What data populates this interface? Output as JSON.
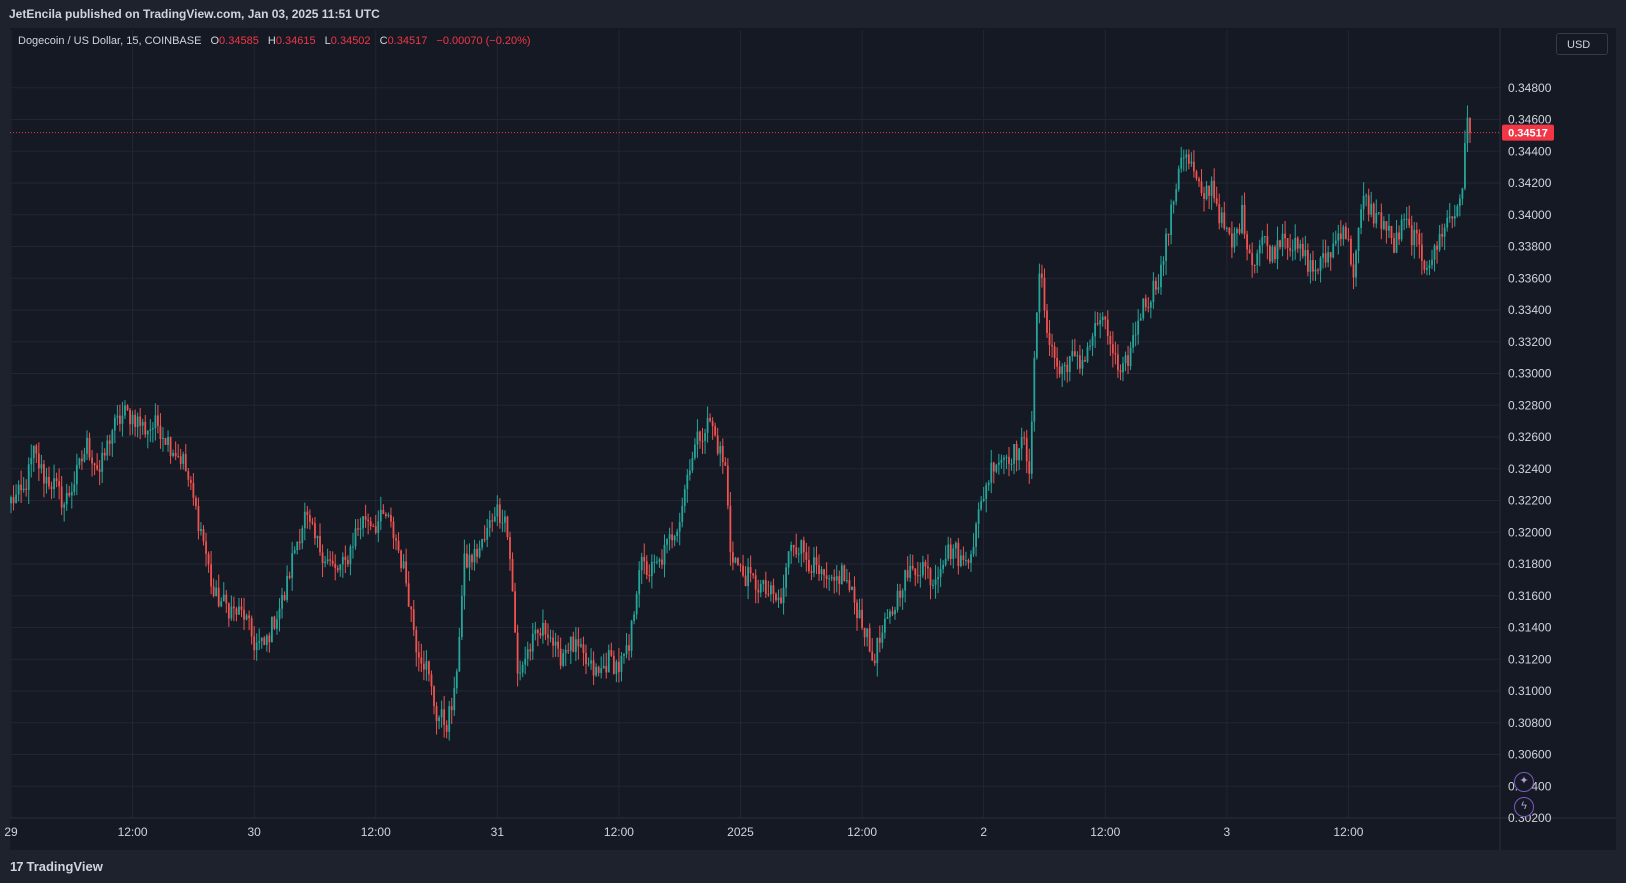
{
  "header": {
    "publisher_text": "JetEncila published on TradingView.com, Jan 03, 2025 11:51 UTC"
  },
  "legend": {
    "symbol": "Dogecoin / US Dollar, 15, COINBASE",
    "open_label": "O",
    "open_value": "0.34585",
    "high_label": "H",
    "high_value": "0.34615",
    "low_label": "L",
    "low_value": "0.34502",
    "close_label": "C",
    "close_value": "0.34517",
    "change": "−0.00070 (−0.20%)"
  },
  "currency": "USD",
  "price_label": "0.34517",
  "footer": {
    "brand": "TradingView",
    "brand_icon": "tv-logo-icon"
  },
  "icons": {
    "ai": "sparkle-icon",
    "alert": "lightning-icon"
  },
  "colors": {
    "up": "#26a69a",
    "down": "#ef5350",
    "background": "#151924",
    "grid": "#232632",
    "price_line": "#f23645"
  },
  "chart_data": {
    "type": "candlestick",
    "title": "Dogecoin / US Dollar, 15, COINBASE",
    "interval": "15",
    "exchange": "COINBASE",
    "y_ticks": [
      "0.34800",
      "0.34600",
      "0.34400",
      "0.34200",
      "0.34000",
      "0.33800",
      "0.33600",
      "0.33400",
      "0.33200",
      "0.33000",
      "0.32800",
      "0.32600",
      "0.32400",
      "0.32200",
      "0.32000",
      "0.31800",
      "0.31600",
      "0.31400",
      "0.31200",
      "0.31000",
      "0.30800",
      "0.30600",
      "0.30400",
      "0.30200"
    ],
    "ylim": [
      0.302,
      0.35
    ],
    "x_ticks": [
      "29",
      "12:00",
      "30",
      "12:00",
      "31",
      "12:00",
      "2025",
      "12:00",
      "2",
      "12:00",
      "3",
      "12:00"
    ],
    "x_tick_bars": [
      0,
      48,
      96,
      144,
      192,
      240,
      288,
      336,
      384,
      432,
      480,
      528
    ],
    "last_price": 0.34517,
    "grid": true,
    "close_path": [
      [
        0,
        0.322
      ],
      [
        5,
        0.3225
      ],
      [
        9,
        0.325
      ],
      [
        13,
        0.3235
      ],
      [
        17,
        0.323
      ],
      [
        21,
        0.3218
      ],
      [
        25,
        0.3232
      ],
      [
        30,
        0.3255
      ],
      [
        35,
        0.3238
      ],
      [
        40,
        0.3265
      ],
      [
        45,
        0.3275
      ],
      [
        49,
        0.3272
      ],
      [
        53,
        0.3265
      ],
      [
        58,
        0.3268
      ],
      [
        63,
        0.3255
      ],
      [
        68,
        0.3245
      ],
      [
        72,
        0.322
      ],
      [
        76,
        0.3195
      ],
      [
        80,
        0.316
      ],
      [
        84,
        0.3155
      ],
      [
        88,
        0.315
      ],
      [
        92,
        0.3148
      ],
      [
        96,
        0.313
      ],
      [
        100,
        0.3128
      ],
      [
        104,
        0.3145
      ],
      [
        108,
        0.316
      ],
      [
        112,
        0.319
      ],
      [
        116,
        0.321
      ],
      [
        120,
        0.3195
      ],
      [
        124,
        0.3185
      ],
      [
        128,
        0.3175
      ],
      [
        132,
        0.318
      ],
      [
        136,
        0.32
      ],
      [
        140,
        0.321
      ],
      [
        144,
        0.3205
      ],
      [
        148,
        0.321
      ],
      [
        152,
        0.3195
      ],
      [
        156,
        0.317
      ],
      [
        160,
        0.313
      ],
      [
        164,
        0.3115
      ],
      [
        168,
        0.3085
      ],
      [
        172,
        0.308
      ],
      [
        175,
        0.3095
      ],
      [
        179,
        0.318
      ],
      [
        183,
        0.3185
      ],
      [
        187,
        0.3195
      ],
      [
        191,
        0.3215
      ],
      [
        195,
        0.321
      ],
      [
        197,
        0.3185
      ],
      [
        200,
        0.311
      ],
      [
        204,
        0.3125
      ],
      [
        208,
        0.3135
      ],
      [
        212,
        0.314
      ],
      [
        216,
        0.312
      ],
      [
        220,
        0.313
      ],
      [
        224,
        0.3125
      ],
      [
        228,
        0.3115
      ],
      [
        232,
        0.311
      ],
      [
        236,
        0.312
      ],
      [
        240,
        0.3115
      ],
      [
        244,
        0.3125
      ],
      [
        248,
        0.318
      ],
      [
        252,
        0.3175
      ],
      [
        256,
        0.318
      ],
      [
        260,
        0.3195
      ],
      [
        264,
        0.321
      ],
      [
        268,
        0.3245
      ],
      [
        272,
        0.3262
      ],
      [
        276,
        0.327
      ],
      [
        280,
        0.325
      ],
      [
        282,
        0.324
      ],
      [
        284,
        0.319
      ],
      [
        288,
        0.3175
      ],
      [
        292,
        0.317
      ],
      [
        296,
        0.3165
      ],
      [
        300,
        0.316
      ],
      [
        304,
        0.3155
      ],
      [
        308,
        0.3195
      ],
      [
        312,
        0.319
      ],
      [
        316,
        0.318
      ],
      [
        320,
        0.317
      ],
      [
        324,
        0.3165
      ],
      [
        328,
        0.3175
      ],
      [
        332,
        0.316
      ],
      [
        336,
        0.3145
      ],
      [
        340,
        0.312
      ],
      [
        344,
        0.3135
      ],
      [
        348,
        0.315
      ],
      [
        352,
        0.317
      ],
      [
        356,
        0.3175
      ],
      [
        360,
        0.318
      ],
      [
        364,
        0.317
      ],
      [
        368,
        0.3185
      ],
      [
        372,
        0.319
      ],
      [
        376,
        0.318
      ],
      [
        380,
        0.3195
      ],
      [
        384,
        0.3225
      ],
      [
        388,
        0.3245
      ],
      [
        392,
        0.3248
      ],
      [
        396,
        0.325
      ],
      [
        400,
        0.3255
      ],
      [
        402,
        0.3243
      ],
      [
        406,
        0.3365
      ],
      [
        410,
        0.332
      ],
      [
        414,
        0.33
      ],
      [
        418,
        0.331
      ],
      [
        422,
        0.3305
      ],
      [
        426,
        0.332
      ],
      [
        430,
        0.3335
      ],
      [
        434,
        0.332
      ],
      [
        438,
        0.3295
      ],
      [
        442,
        0.3315
      ],
      [
        446,
        0.334
      ],
      [
        450,
        0.335
      ],
      [
        454,
        0.3365
      ],
      [
        458,
        0.34
      ],
      [
        462,
        0.344
      ],
      [
        466,
        0.343
      ],
      [
        470,
        0.341
      ],
      [
        474,
        0.342
      ],
      [
        478,
        0.3395
      ],
      [
        482,
        0.338
      ],
      [
        486,
        0.34
      ],
      [
        490,
        0.337
      ],
      [
        494,
        0.3385
      ],
      [
        498,
        0.3375
      ],
      [
        502,
        0.339
      ],
      [
        506,
        0.338
      ],
      [
        510,
        0.3375
      ],
      [
        514,
        0.3365
      ],
      [
        518,
        0.337
      ],
      [
        522,
        0.338
      ],
      [
        526,
        0.3395
      ],
      [
        530,
        0.3365
      ],
      [
        534,
        0.341
      ],
      [
        538,
        0.34
      ],
      [
        542,
        0.3395
      ],
      [
        546,
        0.338
      ],
      [
        550,
        0.3395
      ],
      [
        554,
        0.3385
      ],
      [
        558,
        0.337
      ],
      [
        562,
        0.3375
      ],
      [
        566,
        0.3395
      ],
      [
        570,
        0.34
      ],
      [
        573,
        0.342
      ],
      [
        575,
        0.3458
      ],
      [
        576,
        0.34517
      ]
    ]
  }
}
